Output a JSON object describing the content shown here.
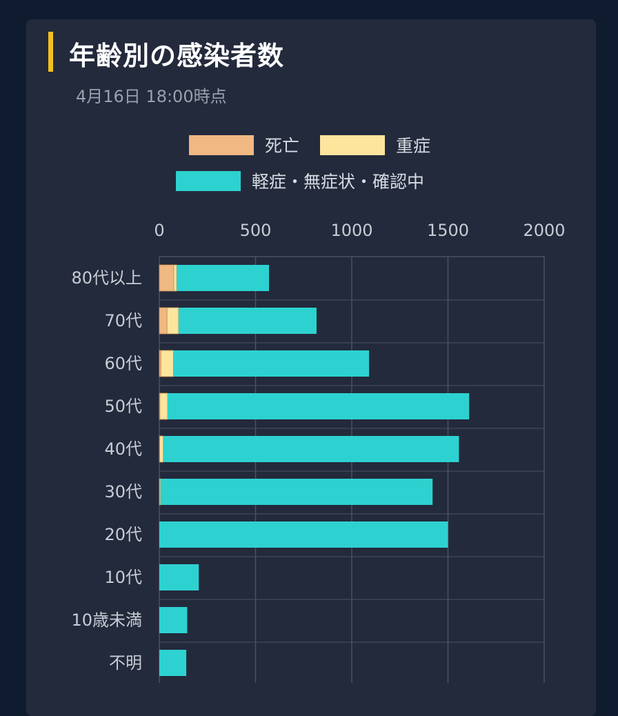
{
  "title": "年齢別の感染者数",
  "subtitle": "4月16日 18:00時点",
  "colors": {
    "death": "#f0b883",
    "severe": "#fde59e",
    "mild": "#2dd2d0",
    "grid": "#4a5163"
  },
  "chart_data": {
    "type": "bar",
    "orientation": "horizontal",
    "stacked": true,
    "title": "年齢別の感染者数",
    "subtitle": "4月16日 18:00時点",
    "categories": [
      "80代以上",
      "70代",
      "60代",
      "50代",
      "40代",
      "30代",
      "20代",
      "10代",
      "10歳未満",
      "不明"
    ],
    "series": [
      {
        "name": "死亡",
        "color": "#f0b883",
        "values": [
          75,
          40,
          8,
          3,
          2,
          1,
          0,
          0,
          0,
          0
        ]
      },
      {
        "name": "重症",
        "color": "#fde59e",
        "values": [
          15,
          60,
          65,
          40,
          18,
          5,
          0,
          0,
          0,
          0
        ]
      },
      {
        "name": "軽症・無症状・確認中",
        "color": "#2dd2d0",
        "values": [
          480,
          717,
          1017,
          1567,
          1537,
          1414,
          1500,
          205,
          145,
          140
        ]
      }
    ],
    "xlim": [
      0,
      2000
    ],
    "xticks": [
      0,
      500,
      1000,
      1500,
      2000
    ],
    "grid": true,
    "legend_position": "top"
  }
}
